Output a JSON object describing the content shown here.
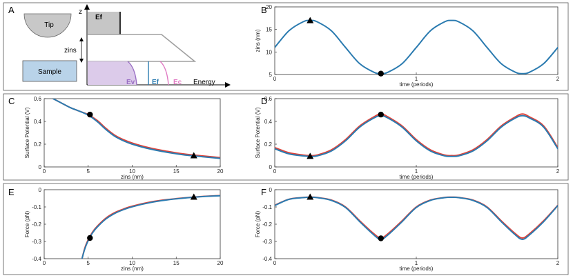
{
  "panels": {
    "A": {
      "label": "A",
      "tip_label": "Tip",
      "sample_label": "Sample",
      "ef_box_label": "Ef",
      "z_label": "z",
      "zins_label": "zins",
      "energy_label": "Energy",
      "ev_label": "Ev",
      "ef_label": "Ef",
      "ec_label": "Ec",
      "colors": {
        "tip_fill": "#c8c8c8",
        "sample_fill": "#b9d3e9",
        "ef_box_fill": "#c6c6c6",
        "valence_fill": "#dccbea",
        "ev_line": "#9a6fc4",
        "ef_line": "#2b7bb0",
        "ec_line": "#e07ac3",
        "barrier_line": "#a0a0a0"
      }
    }
  },
  "chart_data": [
    {
      "id": "B",
      "panel_label": "B",
      "type": "line",
      "title": "",
      "xlabel": "time (periods)",
      "ylabel": "zins (nm)",
      "xlim": [
        0,
        2
      ],
      "ylim": [
        5,
        20
      ],
      "xticks": [
        0,
        1,
        2
      ],
      "xtick_labels": [
        "0",
        "1",
        "2"
      ],
      "yticks": [
        5,
        10,
        15,
        20
      ],
      "ytick_labels": [
        "5",
        "10",
        "15",
        "20"
      ],
      "series": [
        {
          "name": "zins",
          "color": "#2b7bb0",
          "x": [
            0,
            0.1,
            0.2,
            0.25,
            0.3,
            0.4,
            0.5,
            0.6,
            0.7,
            0.75,
            0.8,
            0.9,
            1.0,
            1.1,
            1.2,
            1.25,
            1.3,
            1.4,
            1.5,
            1.6,
            1.7,
            1.75,
            1.8,
            1.9,
            2.0
          ],
          "y": [
            11.0,
            14.7,
            16.7,
            17.0,
            16.7,
            14.7,
            11.0,
            7.4,
            5.5,
            5.2,
            5.5,
            7.4,
            11.0,
            14.7,
            16.7,
            17.0,
            16.7,
            14.7,
            11.0,
            7.4,
            5.5,
            5.2,
            5.5,
            7.4,
            11.0
          ]
        }
      ],
      "markers": [
        {
          "shape": "triangle",
          "x": 0.25,
          "y": 17.0
        },
        {
          "shape": "circle",
          "x": 0.75,
          "y": 5.2
        }
      ]
    },
    {
      "id": "C",
      "panel_label": "C",
      "type": "line",
      "title": "",
      "xlabel": "zins (nm)",
      "ylabel": "Surface Potential (V)",
      "xlim": [
        0,
        20
      ],
      "ylim": [
        0,
        0.6
      ],
      "xticks": [
        0,
        5,
        10,
        15,
        20
      ],
      "xtick_labels": [
        "0",
        "5",
        "10",
        "15",
        "20"
      ],
      "yticks": [
        0,
        0.2,
        0.4,
        0.6
      ],
      "ytick_labels": [
        "0",
        "0.2",
        "0.4",
        "0.6"
      ],
      "series": [
        {
          "name": "red",
          "color": "#e0443a",
          "x": [
            1,
            2,
            3,
            4,
            5,
            6,
            7,
            8,
            9,
            10,
            12,
            14,
            16,
            18,
            20
          ],
          "y": [
            0.6,
            0.56,
            0.52,
            0.49,
            0.46,
            0.41,
            0.34,
            0.28,
            0.24,
            0.21,
            0.167,
            0.137,
            0.113,
            0.097,
            0.082
          ]
        },
        {
          "name": "blue",
          "color": "#2b7bb0",
          "x": [
            1,
            2,
            3,
            4,
            5,
            6,
            7,
            8,
            9,
            10,
            12,
            14,
            16,
            18,
            20
          ],
          "y": [
            0.6,
            0.56,
            0.52,
            0.49,
            0.455,
            0.4,
            0.33,
            0.27,
            0.23,
            0.2,
            0.158,
            0.128,
            0.105,
            0.09,
            0.075
          ]
        }
      ],
      "markers": [
        {
          "shape": "circle",
          "x": 5.2,
          "y": 0.46
        },
        {
          "shape": "triangle",
          "x": 17.0,
          "y": 0.1
        }
      ]
    },
    {
      "id": "D",
      "panel_label": "D",
      "type": "line",
      "title": "",
      "xlabel": "time (periods)",
      "ylabel": "Surface Potential (V)",
      "xlim": [
        0,
        2
      ],
      "ylim": [
        0,
        0.6
      ],
      "xticks": [
        0,
        1,
        2
      ],
      "xtick_labels": [
        "0",
        "1",
        "2"
      ],
      "yticks": [
        0,
        0.2,
        0.4,
        0.6
      ],
      "ytick_labels": [
        "0",
        "0.2",
        "0.4",
        "0.6"
      ],
      "series": [
        {
          "name": "red",
          "color": "#e0443a",
          "x": [
            0,
            0.1,
            0.2,
            0.25,
            0.3,
            0.4,
            0.5,
            0.6,
            0.7,
            0.75,
            0.8,
            0.9,
            1.0,
            1.1,
            1.2,
            1.25,
            1.3,
            1.4,
            1.5,
            1.6,
            1.7,
            1.75,
            1.8,
            1.9,
            2.0
          ],
          "y": [
            0.17,
            0.125,
            0.105,
            0.1,
            0.105,
            0.15,
            0.24,
            0.36,
            0.44,
            0.465,
            0.44,
            0.36,
            0.24,
            0.15,
            0.105,
            0.1,
            0.105,
            0.15,
            0.24,
            0.36,
            0.44,
            0.465,
            0.44,
            0.36,
            0.17
          ]
        },
        {
          "name": "blue",
          "color": "#2b7bb0",
          "x": [
            0,
            0.1,
            0.2,
            0.25,
            0.3,
            0.4,
            0.5,
            0.6,
            0.7,
            0.75,
            0.8,
            0.9,
            1.0,
            1.1,
            1.2,
            1.25,
            1.3,
            1.4,
            1.5,
            1.6,
            1.7,
            1.75,
            1.8,
            1.9,
            2.0
          ],
          "y": [
            0.16,
            0.115,
            0.097,
            0.093,
            0.097,
            0.14,
            0.23,
            0.35,
            0.43,
            0.45,
            0.43,
            0.35,
            0.23,
            0.14,
            0.097,
            0.093,
            0.097,
            0.14,
            0.23,
            0.35,
            0.43,
            0.45,
            0.43,
            0.35,
            0.16
          ]
        }
      ],
      "markers": [
        {
          "shape": "triangle",
          "x": 0.25,
          "y": 0.095
        },
        {
          "shape": "circle",
          "x": 0.75,
          "y": 0.46
        }
      ]
    },
    {
      "id": "E",
      "panel_label": "E",
      "type": "line",
      "title": "",
      "xlabel": "zins (nm)",
      "ylabel": "Force (pN)",
      "xlim": [
        0,
        20
      ],
      "ylim": [
        -0.4,
        0
      ],
      "xticks": [
        0,
        5,
        10,
        15,
        20
      ],
      "xtick_labels": [
        "0",
        "5",
        "10",
        "15",
        "20"
      ],
      "yticks": [
        -0.4,
        -0.3,
        -0.2,
        -0.1,
        0
      ],
      "ytick_labels": [
        "-0.4",
        "-0.3",
        "-0.2",
        "-0.1",
        "0"
      ],
      "series": [
        {
          "name": "red",
          "color": "#e0443a",
          "x": [
            4.3,
            4.6,
            5.0,
            5.5,
            6,
            7,
            8,
            9,
            10,
            12,
            14,
            16,
            18,
            20
          ],
          "y": [
            -0.4,
            -0.34,
            -0.29,
            -0.245,
            -0.213,
            -0.165,
            -0.133,
            -0.112,
            -0.095,
            -0.072,
            -0.057,
            -0.047,
            -0.039,
            -0.034
          ]
        },
        {
          "name": "blue",
          "color": "#2b7bb0",
          "x": [
            4.3,
            4.6,
            5.0,
            5.5,
            6,
            7,
            8,
            9,
            10,
            12,
            14,
            16,
            18,
            20
          ],
          "y": [
            -0.4,
            -0.345,
            -0.295,
            -0.25,
            -0.218,
            -0.17,
            -0.138,
            -0.116,
            -0.099,
            -0.075,
            -0.059,
            -0.048,
            -0.04,
            -0.035
          ]
        }
      ],
      "markers": [
        {
          "shape": "circle",
          "x": 5.2,
          "y": -0.28
        },
        {
          "shape": "triangle",
          "x": 17.0,
          "y": -0.042
        }
      ]
    },
    {
      "id": "F",
      "panel_label": "F",
      "type": "line",
      "title": "",
      "xlabel": "time (periods)",
      "ylabel": "Force (pN)",
      "xlim": [
        0,
        2
      ],
      "ylim": [
        -0.4,
        0
      ],
      "xticks": [
        0,
        1,
        2
      ],
      "xtick_labels": [
        "0",
        "1",
        "2"
      ],
      "yticks": [
        -0.4,
        -0.3,
        -0.2,
        -0.1,
        0
      ],
      "ytick_labels": [
        "-0.4",
        "-0.3",
        "-0.2",
        "-0.1",
        "0"
      ],
      "series": [
        {
          "name": "red",
          "color": "#e0443a",
          "x": [
            0,
            0.1,
            0.2,
            0.25,
            0.3,
            0.4,
            0.5,
            0.6,
            0.7,
            0.75,
            0.8,
            0.9,
            1.0,
            1.1,
            1.2,
            1.25,
            1.3,
            1.4,
            1.5,
            1.6,
            1.7,
            1.75,
            1.8,
            1.9,
            2.0
          ],
          "y": [
            -0.09,
            -0.055,
            -0.045,
            -0.043,
            -0.045,
            -0.06,
            -0.1,
            -0.18,
            -0.255,
            -0.28,
            -0.255,
            -0.18,
            -0.1,
            -0.06,
            -0.045,
            -0.043,
            -0.045,
            -0.06,
            -0.1,
            -0.18,
            -0.255,
            -0.28,
            -0.255,
            -0.18,
            -0.09
          ]
        },
        {
          "name": "blue",
          "color": "#2b7bb0",
          "x": [
            0,
            0.1,
            0.2,
            0.25,
            0.3,
            0.4,
            0.5,
            0.6,
            0.7,
            0.75,
            0.8,
            0.9,
            1.0,
            1.1,
            1.2,
            1.25,
            1.3,
            1.4,
            1.5,
            1.6,
            1.7,
            1.75,
            1.8,
            1.9,
            2.0
          ],
          "y": [
            -0.092,
            -0.056,
            -0.046,
            -0.044,
            -0.046,
            -0.062,
            -0.103,
            -0.185,
            -0.262,
            -0.288,
            -0.262,
            -0.185,
            -0.103,
            -0.062,
            -0.046,
            -0.044,
            -0.046,
            -0.062,
            -0.103,
            -0.185,
            -0.262,
            -0.288,
            -0.262,
            -0.185,
            -0.092
          ]
        }
      ],
      "markers": [
        {
          "shape": "triangle",
          "x": 0.25,
          "y": -0.042
        },
        {
          "shape": "circle",
          "x": 0.75,
          "y": -0.282
        }
      ]
    }
  ]
}
